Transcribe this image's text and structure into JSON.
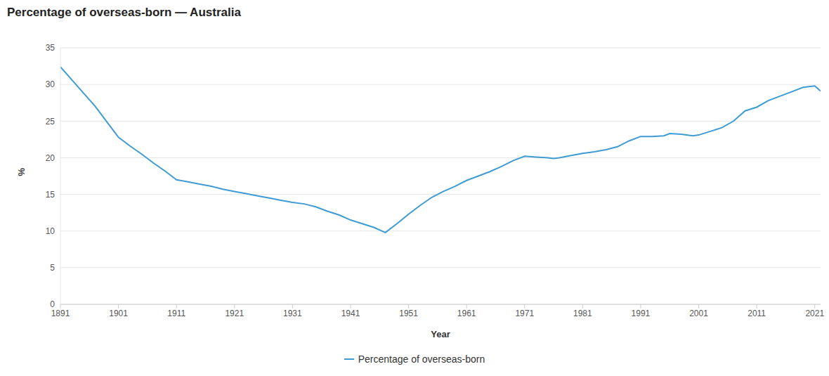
{
  "chart_data": {
    "type": "line",
    "title": "Percentage of overseas-born — Australia",
    "x_label": "Year",
    "y_label": "%",
    "x": [
      1891,
      1893,
      1895,
      1897,
      1899,
      1901,
      1903,
      1905,
      1907,
      1909,
      1911,
      1913,
      1915,
      1917,
      1919,
      1921,
      1923,
      1925,
      1927,
      1929,
      1931,
      1933,
      1935,
      1937,
      1939,
      1941,
      1943,
      1945,
      1947,
      1949,
      1951,
      1953,
      1955,
      1957,
      1959,
      1961,
      1963,
      1965,
      1967,
      1969,
      1971,
      1973,
      1975,
      1976,
      1977,
      1979,
      1981,
      1983,
      1985,
      1987,
      1989,
      1991,
      1993,
      1995,
      1996,
      1998,
      2000,
      2001,
      2003,
      2005,
      2007,
      2009,
      2011,
      2013,
      2015,
      2017,
      2019,
      2021,
      2022
    ],
    "series": [
      {
        "name": "Percentage of overseas-born",
        "color": "#3e9bd4",
        "values": [
          32.4,
          30.6,
          28.8,
          27.0,
          24.9,
          22.8,
          21.6,
          20.5,
          19.3,
          18.2,
          17.0,
          16.7,
          16.4,
          16.1,
          15.7,
          15.4,
          15.1,
          14.8,
          14.5,
          14.2,
          13.9,
          13.7,
          13.3,
          12.7,
          12.2,
          11.5,
          11.0,
          10.5,
          9.8,
          11.0,
          12.3,
          13.5,
          14.6,
          15.4,
          16.1,
          16.9,
          17.5,
          18.1,
          18.8,
          19.6,
          20.2,
          20.1,
          20.0,
          19.9,
          20.0,
          20.3,
          20.6,
          20.8,
          21.1,
          21.5,
          22.3,
          22.9,
          22.9,
          23.0,
          23.3,
          23.2,
          23.0,
          23.1,
          23.6,
          24.1,
          25.0,
          26.4,
          26.9,
          27.8,
          28.4,
          29.0,
          29.6,
          29.8,
          29.1
        ]
      }
    ],
    "xlim": [
      1891,
      2022
    ],
    "xticks": [
      1891,
      1901,
      1911,
      1921,
      1931,
      1941,
      1951,
      1961,
      1971,
      1981,
      1991,
      2001,
      2011,
      2021
    ],
    "ylim": [
      0,
      35
    ],
    "yticks": [
      0,
      5,
      10,
      15,
      20,
      25,
      30,
      35
    ],
    "grid": true,
    "legend": "bottom"
  }
}
